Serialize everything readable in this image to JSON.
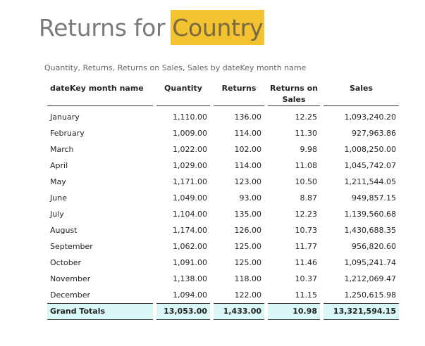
{
  "title": {
    "prefix": "Returns for",
    "highlight": "Country"
  },
  "subtitle": "Quantity, Returns, Returns on Sales, Sales by dateKey month name",
  "table": {
    "headers": {
      "month": "dateKey month name",
      "quantity": "Quantity",
      "returns": "Returns",
      "returns_on_sales_line1": "Returns on",
      "returns_on_sales_line2": "Sales",
      "sales": "Sales"
    },
    "rows": [
      {
        "month": "January",
        "quantity": "1,110.00",
        "returns": "136.00",
        "ros": "12.25",
        "sales": "1,093,240.20"
      },
      {
        "month": "February",
        "quantity": "1,009.00",
        "returns": "114.00",
        "ros": "11.30",
        "sales": "927,963.86"
      },
      {
        "month": "March",
        "quantity": "1,022.00",
        "returns": "102.00",
        "ros": "9.98",
        "sales": "1,008,250.00"
      },
      {
        "month": "April",
        "quantity": "1,029.00",
        "returns": "114.00",
        "ros": "11.08",
        "sales": "1,045,742.07"
      },
      {
        "month": "May",
        "quantity": "1,171.00",
        "returns": "123.00",
        "ros": "10.50",
        "sales": "1,211,544.05"
      },
      {
        "month": "June",
        "quantity": "1,049.00",
        "returns": "93.00",
        "ros": "8.87",
        "sales": "949,857.15"
      },
      {
        "month": "July",
        "quantity": "1,104.00",
        "returns": "135.00",
        "ros": "12.23",
        "sales": "1,139,560.68"
      },
      {
        "month": "August",
        "quantity": "1,174.00",
        "returns": "126.00",
        "ros": "10.73",
        "sales": "1,430,688.35"
      },
      {
        "month": "September",
        "quantity": "1,062.00",
        "returns": "125.00",
        "ros": "11.77",
        "sales": "956,820.60"
      },
      {
        "month": "October",
        "quantity": "1,091.00",
        "returns": "125.00",
        "ros": "11.46",
        "sales": "1,095,241.74"
      },
      {
        "month": "November",
        "quantity": "1,138.00",
        "returns": "118.00",
        "ros": "10.37",
        "sales": "1,212,069.47"
      },
      {
        "month": "December",
        "quantity": "1,094.00",
        "returns": "122.00",
        "ros": "11.15",
        "sales": "1,250,615.98"
      }
    ],
    "totals": {
      "label": "Grand Totals",
      "quantity": "13,053.00",
      "returns": "1,433.00",
      "ros": "10.98",
      "sales": "13,321,594.15"
    }
  },
  "colors": {
    "highlight": "#f2c230",
    "total_row_bg": "#d9f7f7",
    "title_text": "#7a7a7a"
  }
}
